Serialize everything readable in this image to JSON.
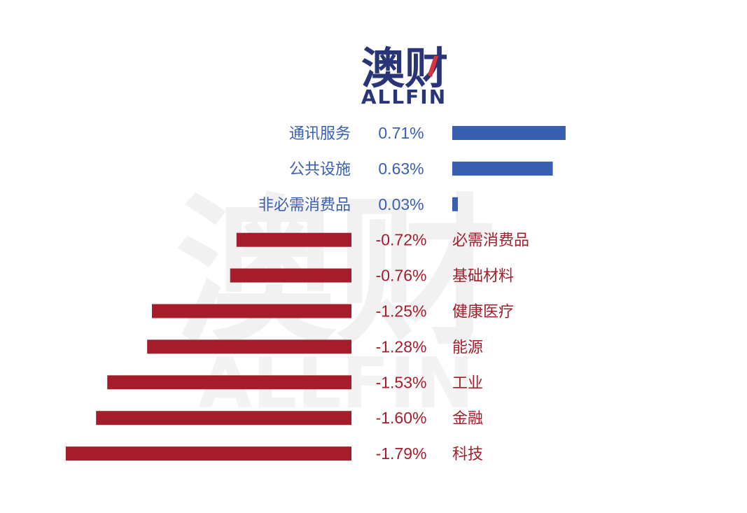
{
  "logo": {
    "chinese": "澳财",
    "english": "ALLFIN"
  },
  "watermark": {
    "chinese": "澳财",
    "english": "ALLFIN"
  },
  "colors": {
    "positive": "#3a5fb0",
    "negative": "#a51d2a",
    "logo_navy": "#2a3578",
    "logo_accent": "#d8343f",
    "watermark": "#f0f0f0"
  },
  "chart_data": {
    "type": "bar",
    "orientation": "horizontal",
    "diverging": true,
    "categories": [
      "通讯服务",
      "公共设施",
      "非必需消费品",
      "必需消费品",
      "基础材料",
      "健康医疗",
      "能源",
      "工业",
      "金融",
      "科技"
    ],
    "values": [
      0.71,
      0.63,
      0.03,
      -0.72,
      -0.76,
      -1.25,
      -1.28,
      -1.53,
      -1.6,
      -1.79
    ],
    "value_labels": [
      "0.71%",
      "0.63%",
      "0.03%",
      "-0.72%",
      "-0.76%",
      "-1.25%",
      "-1.28%",
      "-1.53%",
      "-1.60%",
      "-1.79%"
    ],
    "unit": "%",
    "grid": false
  }
}
